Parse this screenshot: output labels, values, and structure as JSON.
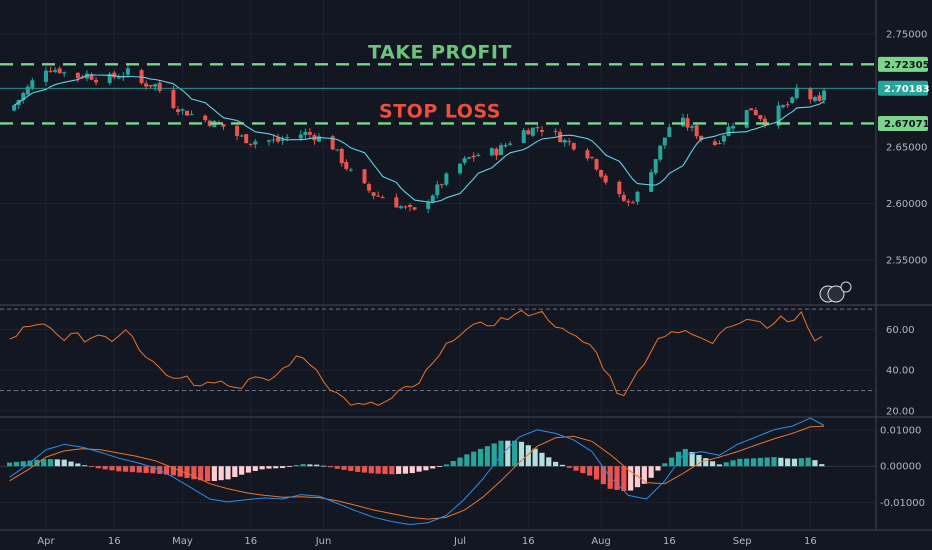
{
  "chart_data": [
    {
      "type": "candlestick",
      "panel": "price",
      "ylim": [
        2.51,
        2.78
      ],
      "y_ticks": [
        2.55,
        2.6,
        2.65,
        2.7,
        2.75
      ],
      "y_tick_labels": [
        "2.55000",
        "2.60000",
        "2.65000",
        "2.70000",
        "2.75000"
      ],
      "x_ticks": [
        {
          "label": "Apr",
          "day": 0
        },
        {
          "label": "16",
          "day": 15
        },
        {
          "label": "May",
          "day": 30
        },
        {
          "label": "16",
          "day": 45
        },
        {
          "label": "Jun",
          "day": 61
        },
        {
          "label": "Jul",
          "day": 91
        },
        {
          "label": "16",
          "day": 106
        },
        {
          "label": "Aug",
          "day": 122
        },
        {
          "label": "16",
          "day": 137
        },
        {
          "label": "Sep",
          "day": 153
        },
        {
          "label": "16",
          "day": 168
        }
      ],
      "close_path": [
        [
          -8,
          2.682
        ],
        [
          -6,
          2.692
        ],
        [
          -4,
          2.702
        ],
        [
          -2,
          2.713
        ],
        [
          0,
          2.72
        ],
        [
          3,
          2.718
        ],
        [
          6,
          2.711
        ],
        [
          9,
          2.714
        ],
        [
          12,
          2.709
        ],
        [
          15,
          2.712
        ],
        [
          18,
          2.716
        ],
        [
          21,
          2.706
        ],
        [
          24,
          2.705
        ],
        [
          27,
          2.69
        ],
        [
          30,
          2.682
        ],
        [
          33,
          2.677
        ],
        [
          36,
          2.672
        ],
        [
          39,
          2.668
        ],
        [
          42,
          2.66
        ],
        [
          45,
          2.655
        ],
        [
          48,
          2.656
        ],
        [
          51,
          2.655
        ],
        [
          54,
          2.66
        ],
        [
          57,
          2.662
        ],
        [
          60,
          2.658
        ],
        [
          63,
          2.65
        ],
        [
          66,
          2.632
        ],
        [
          69,
          2.618
        ],
        [
          72,
          2.608
        ],
        [
          75,
          2.604
        ],
        [
          78,
          2.597
        ],
        [
          81,
          2.592
        ],
        [
          84,
          2.604
        ],
        [
          87,
          2.618
        ],
        [
          90,
          2.632
        ],
        [
          93,
          2.64
        ],
        [
          96,
          2.645
        ],
        [
          99,
          2.646
        ],
        [
          102,
          2.655
        ],
        [
          105,
          2.664
        ],
        [
          108,
          2.667
        ],
        [
          111,
          2.664
        ],
        [
          114,
          2.655
        ],
        [
          117,
          2.65
        ],
        [
          120,
          2.64
        ],
        [
          123,
          2.62
        ],
        [
          126,
          2.605
        ],
        [
          128,
          2.6
        ],
        [
          131,
          2.612
        ],
        [
          134,
          2.64
        ],
        [
          137,
          2.668
        ],
        [
          140,
          2.672
        ],
        [
          143,
          2.662
        ],
        [
          146,
          2.648
        ],
        [
          149,
          2.662
        ],
        [
          152,
          2.676
        ],
        [
          155,
          2.684
        ],
        [
          158,
          2.673
        ],
        [
          161,
          2.683
        ],
        [
          164,
          2.69
        ],
        [
          166,
          2.712
        ],
        [
          168,
          2.693
        ],
        [
          170,
          2.688
        ],
        [
          171,
          2.701
        ]
      ],
      "last_close_label": "2.70183",
      "annotations": [
        {
          "text": "TAKE PROFIT",
          "level": 2.72305,
          "badge": "2.72305",
          "color": "#6cc57c",
          "badge_bg": "#7bd68b"
        },
        {
          "text": "STOP LOSS",
          "level": 2.67071,
          "badge": "2.67071",
          "color": "#f24d3c",
          "badge_bg": "#7bd68b"
        }
      ],
      "colors": {
        "up": "#26a69a",
        "down": "#ef5350",
        "ma": "#5fd3e6",
        "grid": "#1e2230",
        "level_line": "#7bd68b"
      }
    },
    {
      "type": "line",
      "panel": "rsi",
      "ylim": [
        17,
        72
      ],
      "y_ticks": [
        20,
        40,
        60
      ],
      "y_tick_labels": [
        "20.00",
        "40.00",
        "60.00"
      ],
      "bands": [
        30,
        70
      ],
      "path": [
        [
          -8,
          55
        ],
        [
          -5,
          60
        ],
        [
          -2,
          61
        ],
        [
          0,
          62
        ],
        [
          3,
          56
        ],
        [
          6,
          57
        ],
        [
          9,
          55
        ],
        [
          12,
          58
        ],
        [
          15,
          55
        ],
        [
          18,
          62
        ],
        [
          21,
          49
        ],
        [
          24,
          45
        ],
        [
          27,
          36
        ],
        [
          30,
          38
        ],
        [
          33,
          33
        ],
        [
          36,
          36
        ],
        [
          39,
          34
        ],
        [
          42,
          31
        ],
        [
          45,
          36
        ],
        [
          48,
          34
        ],
        [
          51,
          38
        ],
        [
          54,
          45
        ],
        [
          57,
          46
        ],
        [
          60,
          39
        ],
        [
          63,
          30
        ],
        [
          66,
          25
        ],
        [
          69,
          22
        ],
        [
          72,
          23
        ],
        [
          75,
          24
        ],
        [
          78,
          30
        ],
        [
          81,
          31
        ],
        [
          84,
          40
        ],
        [
          87,
          48
        ],
        [
          90,
          58
        ],
        [
          93,
          60
        ],
        [
          96,
          62
        ],
        [
          99,
          64
        ],
        [
          102,
          66
        ],
        [
          105,
          68
        ],
        [
          108,
          69
        ],
        [
          111,
          65
        ],
        [
          114,
          58
        ],
        [
          117,
          55
        ],
        [
          120,
          52
        ],
        [
          123,
          40
        ],
        [
          126,
          28
        ],
        [
          128,
          30
        ],
        [
          131,
          43
        ],
        [
          134,
          54
        ],
        [
          137,
          60
        ],
        [
          140,
          58
        ],
        [
          143,
          57
        ],
        [
          146,
          52
        ],
        [
          149,
          62
        ],
        [
          152,
          64
        ],
        [
          155,
          66
        ],
        [
          158,
          62
        ],
        [
          161,
          65
        ],
        [
          164,
          64
        ],
        [
          166,
          68
        ],
        [
          168,
          56
        ],
        [
          170,
          55
        ],
        [
          171,
          61
        ]
      ],
      "colors": {
        "line": "#e8742c",
        "band": "#6b7085"
      }
    },
    {
      "type": "histogram+line",
      "panel": "macd",
      "ylim": [
        -0.0175,
        0.0135
      ],
      "y_ticks": [
        -0.01,
        0,
        0.01
      ],
      "y_tick_labels": [
        "-0.01000",
        "0.00000",
        "0.01000"
      ],
      "macd_path": [
        [
          -8,
          -0.003
        ],
        [
          -4,
          0.0005
        ],
        [
          0,
          0.0045
        ],
        [
          4,
          0.006
        ],
        [
          8,
          0.0052
        ],
        [
          12,
          0.0038
        ],
        [
          16,
          0.0022
        ],
        [
          20,
          0.001
        ],
        [
          24,
          -0.0005
        ],
        [
          28,
          -0.003
        ],
        [
          32,
          -0.006
        ],
        [
          36,
          -0.009
        ],
        [
          40,
          -0.0098
        ],
        [
          44,
          -0.0092
        ],
        [
          48,
          -0.0087
        ],
        [
          52,
          -0.009
        ],
        [
          56,
          -0.0078
        ],
        [
          60,
          -0.0082
        ],
        [
          64,
          -0.0102
        ],
        [
          68,
          -0.0122
        ],
        [
          72,
          -0.014
        ],
        [
          76,
          -0.0152
        ],
        [
          80,
          -0.016
        ],
        [
          84,
          -0.0155
        ],
        [
          88,
          -0.0135
        ],
        [
          92,
          -0.009
        ],
        [
          96,
          -0.0035
        ],
        [
          100,
          0.003
        ],
        [
          104,
          0.008
        ],
        [
          108,
          0.01
        ],
        [
          112,
          0.009
        ],
        [
          116,
          0.0072
        ],
        [
          120,
          0.004
        ],
        [
          124,
          -0.003
        ],
        [
          128,
          -0.008
        ],
        [
          132,
          -0.009
        ],
        [
          136,
          -0.004
        ],
        [
          140,
          0.003
        ],
        [
          144,
          0.004
        ],
        [
          148,
          0.003
        ],
        [
          152,
          0.006
        ],
        [
          156,
          0.008
        ],
        [
          160,
          0.01
        ],
        [
          164,
          0.011
        ],
        [
          168,
          0.0132
        ],
        [
          171,
          0.0112
        ]
      ],
      "signal_path": [
        [
          -8,
          -0.004
        ],
        [
          -4,
          -0.001
        ],
        [
          0,
          0.0025
        ],
        [
          4,
          0.0042
        ],
        [
          8,
          0.0048
        ],
        [
          12,
          0.0045
        ],
        [
          16,
          0.0036
        ],
        [
          20,
          0.0027
        ],
        [
          24,
          0.0015
        ],
        [
          28,
          -0.0005
        ],
        [
          32,
          -0.0025
        ],
        [
          36,
          -0.0048
        ],
        [
          40,
          -0.0062
        ],
        [
          44,
          -0.0073
        ],
        [
          48,
          -0.008
        ],
        [
          52,
          -0.0085
        ],
        [
          56,
          -0.0084
        ],
        [
          60,
          -0.0086
        ],
        [
          64,
          -0.0095
        ],
        [
          68,
          -0.0107
        ],
        [
          72,
          -0.012
        ],
        [
          76,
          -0.013
        ],
        [
          80,
          -0.014
        ],
        [
          84,
          -0.0145
        ],
        [
          88,
          -0.014
        ],
        [
          92,
          -0.012
        ],
        [
          96,
          -0.0085
        ],
        [
          100,
          -0.004
        ],
        [
          104,
          0.001
        ],
        [
          108,
          0.0055
        ],
        [
          112,
          0.0078
        ],
        [
          116,
          0.0082
        ],
        [
          120,
          0.0068
        ],
        [
          124,
          0.0032
        ],
        [
          128,
          -0.001
        ],
        [
          132,
          -0.0045
        ],
        [
          136,
          -0.0048
        ],
        [
          140,
          -0.002
        ],
        [
          144,
          0.0012
        ],
        [
          148,
          0.0025
        ],
        [
          152,
          0.004
        ],
        [
          156,
          0.0058
        ],
        [
          160,
          0.0075
        ],
        [
          164,
          0.009
        ],
        [
          168,
          0.0108
        ],
        [
          171,
          0.011
        ]
      ],
      "colors": {
        "macd": "#2a8fe6",
        "signal": "#e8742c",
        "hist_up_strong": "#26a69a",
        "hist_up_weak": "#b2dfdb",
        "hist_down_strong": "#ef5350",
        "hist_down_weak": "#ffcdd2",
        "zero": "#434651"
      }
    }
  ]
}
